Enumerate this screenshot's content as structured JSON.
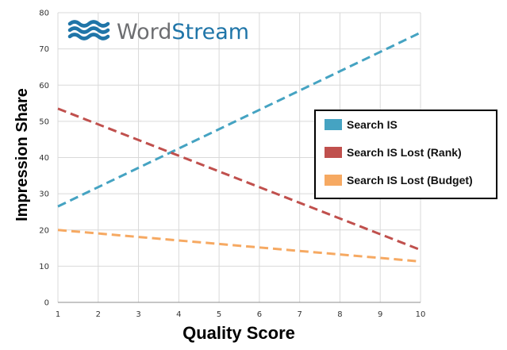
{
  "logo": {
    "word1": "Word",
    "word2": "Stream",
    "color1": "#6d6e71",
    "color2": "#1f75a8"
  },
  "chart_data": {
    "type": "line",
    "xlabel": "Quality Score",
    "ylabel": "Impression Share",
    "xlim": [
      1,
      10
    ],
    "ylim": [
      0,
      80
    ],
    "x_ticks": [
      1,
      2,
      3,
      4,
      5,
      6,
      7,
      8,
      9,
      10
    ],
    "y_ticks": [
      0,
      10,
      20,
      30,
      40,
      50,
      60,
      70,
      80
    ],
    "grid": true,
    "line_style": "dashed",
    "legend_position": "right",
    "series": [
      {
        "name": "Search IS",
        "color": "#45a3c2",
        "x": [
          1,
          10
        ],
        "y": [
          26.5,
          74.5
        ]
      },
      {
        "name": "Search IS Lost (Rank)",
        "color": "#c0504d",
        "x": [
          1,
          10
        ],
        "y": [
          53.5,
          14.5
        ]
      },
      {
        "name": "Search IS Lost (Budget)",
        "color": "#f6a962",
        "x": [
          1,
          10
        ],
        "y": [
          20,
          11.3
        ]
      }
    ]
  }
}
